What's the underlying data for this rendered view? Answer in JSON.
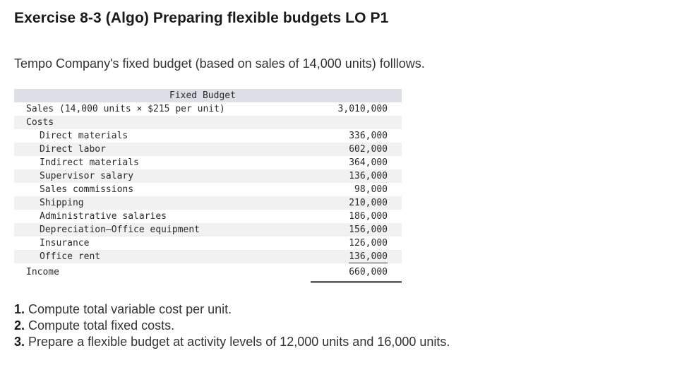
{
  "title": "Exercise 8-3 (Algo) Preparing flexible budgets LO P1",
  "intro": "Tempo Company's fixed budget (based on sales of 14,000 units) folllows.",
  "budget": {
    "header": "Fixed Budget",
    "sales_label": "Sales (14,000 units × $215 per unit)",
    "sales_value": "3,010,000",
    "costs_label": "Costs",
    "costs": [
      {
        "label": "Direct materials",
        "value": "336,000"
      },
      {
        "label": "Direct labor",
        "value": "602,000"
      },
      {
        "label": "Indirect materials",
        "value": "364,000"
      },
      {
        "label": "Supervisor salary",
        "value": "136,000"
      },
      {
        "label": "Sales commissions",
        "value": "98,000"
      },
      {
        "label": "Shipping",
        "value": "210,000"
      },
      {
        "label": "Administrative salaries",
        "value": "186,000"
      },
      {
        "label": "Depreciation—Office equipment",
        "value": "156,000"
      },
      {
        "label": "Insurance",
        "value": "126,000"
      },
      {
        "label": "Office rent",
        "value": "136,000"
      }
    ],
    "income_label": "Income",
    "income_value": "660,000"
  },
  "questions": [
    {
      "num": "1.",
      "text": "Compute total variable cost per unit."
    },
    {
      "num": "2.",
      "text": "Compute total fixed costs."
    },
    {
      "num": "3.",
      "text": "Prepare a flexible budget at activity levels of 12,000 units and 16,000 units."
    }
  ]
}
